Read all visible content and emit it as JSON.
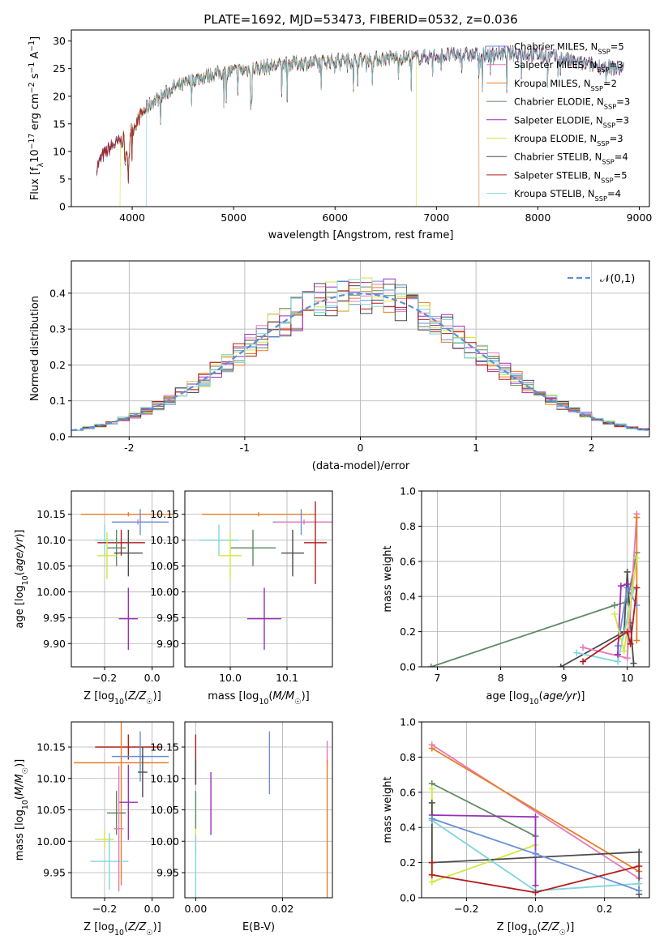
{
  "title": "PLATE=1692, MJD=53473, FIBERID=0532, z=0.036",
  "colors": {
    "Chabrier MILES": "#6a8fd8",
    "Salpeter MILES": "#e879b8",
    "Kroupa MILES": "#e87d24",
    "Chabrier ELODIE": "#5e8a64",
    "Salpeter ELODIE": "#9a2fb8",
    "Kroupa ELODIE": "#d4e640",
    "Chabrier STELIB": "#4a4a4a",
    "Salpeter STELIB": "#b21e1e",
    "Kroupa STELIB": "#7fd6dc",
    "gaussian": "#5b8fd8",
    "grid": "#b0b0b0"
  },
  "chart_data": [
    {
      "id": "spectrum",
      "type": "line",
      "title": "PLATE=1692, MJD=53473, FIBERID=0532, z=0.036",
      "xlabel": "wavelength [Angstrom, rest frame]",
      "ylabel": "Flux [f_λ 10^-17 erg cm^-2 s^-1 A^-1]",
      "xlim": [
        3400,
        9100
      ],
      "ylim": [
        0,
        32
      ],
      "xticks": [
        4000,
        5000,
        6000,
        7000,
        8000,
        9000
      ],
      "yticks": [
        0,
        5,
        10,
        15,
        20,
        25,
        30
      ],
      "grid": false,
      "legend_position": "top-right",
      "continuum": [
        [
          3650,
          7
        ],
        [
          3700,
          9
        ],
        [
          3800,
          11
        ],
        [
          3900,
          12
        ],
        [
          4000,
          14
        ],
        [
          4100,
          17
        ],
        [
          4200,
          19
        ],
        [
          4300,
          20
        ],
        [
          4400,
          21.5
        ],
        [
          4500,
          22
        ],
        [
          4600,
          23
        ],
        [
          4800,
          24
        ],
        [
          5000,
          24.5
        ],
        [
          5200,
          25
        ],
        [
          5400,
          25.5
        ],
        [
          5600,
          26
        ],
        [
          5800,
          26
        ],
        [
          6000,
          26.5
        ],
        [
          6200,
          26.5
        ],
        [
          6400,
          26.7
        ],
        [
          6600,
          27
        ],
        [
          6800,
          27
        ],
        [
          7000,
          27.3
        ],
        [
          7200,
          27.5
        ],
        [
          7400,
          27.5
        ],
        [
          7600,
          27.7
        ],
        [
          7800,
          27.8
        ],
        [
          8000,
          27.5
        ],
        [
          8200,
          27
        ],
        [
          8400,
          26
        ],
        [
          8600,
          25.5
        ],
        [
          8800,
          25
        ]
      ],
      "series": [
        {
          "name": "Chabrier MILES",
          "n_ssp": "5"
        },
        {
          "name": "Salpeter MILES",
          "n_ssp": "3"
        },
        {
          "name": "Kroupa MILES",
          "n_ssp": "2",
          "end": 7420
        },
        {
          "name": "Chabrier ELODIE",
          "n_ssp": "3"
        },
        {
          "name": "Salpeter ELODIE",
          "n_ssp": "3"
        },
        {
          "name": "Kroupa ELODIE",
          "n_ssp": "3",
          "start": 3880,
          "end": 6800
        },
        {
          "name": "Chabrier STELIB",
          "n_ssp": "4"
        },
        {
          "name": "Salpeter STELIB",
          "n_ssp": "5"
        },
        {
          "name": "Kroupa STELIB",
          "n_ssp": "4",
          "start": 4140
        }
      ]
    },
    {
      "id": "residual_histogram",
      "type": "bar",
      "xlabel": "(data-model)/error",
      "ylabel": "Normed distribution",
      "xlim": [
        -2.5,
        2.5
      ],
      "ylim": [
        0,
        0.49
      ],
      "xticks": [
        -2,
        -1,
        0,
        1,
        2
      ],
      "yticks": [
        0.0,
        0.1,
        0.2,
        0.3,
        0.4
      ],
      "grid": true,
      "bin_width": 0.1,
      "legend_label": "𝒩(0,1)",
      "legend_position": "top-right"
    },
    {
      "id": "age_vs_Z",
      "type": "scatter",
      "xlabel": "Z [log10(Z/Z☉)]",
      "ylabel": "age  [log10(age/yr)]",
      "xlim": [
        -0.34,
        0.09
      ],
      "ylim": [
        9.855,
        10.195
      ],
      "xticks": [
        -0.2,
        0.0
      ],
      "xticklabels": [
        "−0.2",
        "0.0"
      ],
      "yticks": [
        9.9,
        9.95,
        10.0,
        10.05,
        10.1,
        10.15
      ],
      "grid": true,
      "points": [
        {
          "series": "Kroupa MILES",
          "x": -0.1,
          "dx": 0.2,
          "y": 10.15,
          "dy": 0.004
        },
        {
          "series": "Salpeter MILES",
          "x": -0.06,
          "dx": 0.1,
          "y": 10.135,
          "dy": 0.005
        },
        {
          "series": "Chabrier MILES",
          "x": -0.05,
          "dx": 0.12,
          "y": 10.135,
          "dy": 0.025
        },
        {
          "series": "Kroupa STELIB",
          "x": -0.2,
          "dx": 0.04,
          "y": 10.1,
          "dy": 0.03
        },
        {
          "series": "Salpeter STELIB",
          "x": -0.13,
          "dx": 0.1,
          "y": 10.095,
          "dy": 0.025
        },
        {
          "series": "Chabrier ELODIE",
          "x": -0.15,
          "dx": 0.04,
          "y": 10.085,
          "dy": 0.035
        },
        {
          "series": "Chabrier STELIB",
          "x": -0.1,
          "dx": 0.06,
          "y": 10.075,
          "dy": 0.045
        },
        {
          "series": "Kroupa ELODIE",
          "x": -0.19,
          "dx": 0.04,
          "y": 10.07,
          "dy": 0.045
        },
        {
          "series": "Salpeter ELODIE",
          "x": -0.1,
          "dx": 0.04,
          "y": 9.948,
          "dy": 0.06
        }
      ]
    },
    {
      "id": "age_vs_mass",
      "type": "scatter",
      "xlabel": "mass [log10(M/M☉)]",
      "ylabel": "",
      "xlim": [
        9.92,
        10.18
      ],
      "ylim": [
        9.855,
        10.195
      ],
      "xticks": [
        10.0,
        10.1
      ],
      "yticks": [
        9.9,
        9.95,
        10.0,
        10.05,
        10.1,
        10.15
      ],
      "grid": true,
      "points": [
        {
          "series": "Kroupa MILES",
          "x": 10.05,
          "dx": 0.1,
          "y": 10.15,
          "dy": 0.004
        },
        {
          "series": "Chabrier MILES",
          "x": 10.125,
          "dx": 0.05,
          "y": 10.135,
          "dy": 0.025
        },
        {
          "series": "Salpeter MILES",
          "x": 10.13,
          "dx": 0.05,
          "y": 10.135,
          "dy": 0.005
        },
        {
          "series": "Kroupa STELIB",
          "x": 9.98,
          "dx": 0.035,
          "y": 10.1,
          "dy": 0.03
        },
        {
          "series": "Salpeter STELIB",
          "x": 10.15,
          "dx": 0.02,
          "y": 10.095,
          "dy": 0.08
        },
        {
          "series": "Chabrier ELODIE",
          "x": 10.04,
          "dx": 0.04,
          "y": 10.085,
          "dy": 0.035
        },
        {
          "series": "Chabrier STELIB",
          "x": 10.11,
          "dx": 0.02,
          "y": 10.075,
          "dy": 0.045
        },
        {
          "series": "Kroupa ELODIE",
          "x": 10.0,
          "dx": 0.02,
          "y": 10.07,
          "dy": 0.045
        },
        {
          "series": "Salpeter ELODIE",
          "x": 10.06,
          "dx": 0.03,
          "y": 9.948,
          "dy": 0.06
        }
      ]
    },
    {
      "id": "mass_weight_vs_age",
      "type": "line",
      "xlabel": "age  [log10(age/yr)]",
      "ylabel": "mass weight",
      "xlim": [
        6.75,
        10.35
      ],
      "ylim": [
        0,
        1.0
      ],
      "xticks": [
        7,
        8,
        9,
        10
      ],
      "yticks": [
        0.0,
        0.2,
        0.4,
        0.6,
        0.8,
        1.0
      ],
      "grid": true,
      "series": [
        {
          "name": "Chabrier ELODIE",
          "points": [
            [
              6.9,
              0
            ],
            [
              9.8,
              0.35
            ],
            [
              10.0,
              0.37
            ],
            [
              10.15,
              0.65
            ]
          ]
        },
        {
          "name": "Chabrier STELIB",
          "points": [
            [
              8.95,
              0
            ],
            [
              9.95,
              0.2
            ],
            [
              10.0,
              0.54
            ],
            [
              10.05,
              0.25
            ],
            [
              10.1,
              0.02
            ]
          ]
        },
        {
          "name": "Kroupa STELIB",
          "points": [
            [
              9.2,
              0.08
            ],
            [
              9.85,
              0.03
            ],
            [
              10.1,
              0.44
            ],
            [
              10.15,
              0.45
            ]
          ]
        },
        {
          "name": "Salpeter MILES",
          "points": [
            [
              9.3,
              0.11
            ],
            [
              10.0,
              0.05
            ],
            [
              10.15,
              0.87
            ]
          ]
        },
        {
          "name": "Kroupa MILES",
          "points": [
            [
              10.15,
              0.15
            ],
            [
              10.15,
              0.85
            ]
          ]
        },
        {
          "name": "Chabrier MILES",
          "points": [
            [
              9.85,
              0.12
            ],
            [
              10.0,
              0.45
            ],
            [
              10.15,
              0.35
            ]
          ]
        },
        {
          "name": "Salpeter ELODIE",
          "points": [
            [
              9.85,
              0.07
            ],
            [
              9.9,
              0.46
            ],
            [
              10.0,
              0.47
            ]
          ]
        },
        {
          "name": "Kroupa ELODIE",
          "points": [
            [
              9.8,
              0.3
            ],
            [
              9.95,
              0.09
            ],
            [
              10.15,
              0.62
            ]
          ]
        },
        {
          "name": "Salpeter STELIB",
          "points": [
            [
              9.3,
              0.03
            ],
            [
              10.0,
              0.2
            ],
            [
              10.05,
              0.13
            ],
            [
              10.15,
              0.45
            ]
          ]
        }
      ]
    },
    {
      "id": "mass_vs_Z",
      "type": "scatter",
      "xlabel": "Z [log10(Z/Z☉)]",
      "ylabel": "mass [log10(M/M☉)]",
      "xlim": [
        -0.34,
        0.09
      ],
      "ylim": [
        9.91,
        10.19
      ],
      "xticks": [
        -0.2,
        0.0
      ],
      "xticklabels": [
        "−0.2",
        "0.0"
      ],
      "yticks": [
        9.95,
        10.0,
        10.05,
        10.1,
        10.15
      ],
      "grid": true,
      "points": [
        {
          "series": "Salpeter STELIB",
          "x": -0.1,
          "dx": 0.14,
          "y": 10.15,
          "dy": 0.02
        },
        {
          "series": "Chabrier MILES",
          "x": -0.05,
          "dx": 0.12,
          "y": 10.135,
          "dy": 0.04
        },
        {
          "series": "Kroupa MILES",
          "x": -0.13,
          "dx": 0.2,
          "y": 10.125,
          "dy": 0.195
        },
        {
          "series": "Chabrier STELIB",
          "x": -0.04,
          "dx": 0.02,
          "y": 10.11,
          "dy": 0.04
        },
        {
          "series": "Salpeter ELODIE",
          "x": -0.1,
          "dx": 0.04,
          "y": 10.062,
          "dy": 0.06
        },
        {
          "series": "Chabrier ELODIE",
          "x": -0.15,
          "dx": 0.04,
          "y": 10.045,
          "dy": 0.035
        },
        {
          "series": "Kroupa ELODIE",
          "x": -0.2,
          "dx": 0.04,
          "y": 10.003,
          "dy": 0.015
        },
        {
          "series": "Kroupa STELIB",
          "x": -0.18,
          "dx": 0.08,
          "y": 9.968,
          "dy": 0.045
        },
        {
          "series": "Salpeter MILES",
          "x": -0.14,
          "dx": 0.02,
          "y": 10.02,
          "dy": 0.1
        }
      ]
    },
    {
      "id": "mass_vs_ebv",
      "type": "scatter",
      "xlabel": "E(B-V)",
      "ylabel": "",
      "xlim": [
        -0.0025,
        0.0315
      ],
      "ylim": [
        9.91,
        10.19
      ],
      "xticks": [
        0.0,
        0.02
      ],
      "yticks": [
        9.95,
        10.0,
        10.05,
        10.1,
        10.15
      ],
      "grid": true,
      "points": [
        {
          "series": "Salpeter STELIB",
          "x": 0.0,
          "dx": 0,
          "y": 10.13,
          "dy": 0.04
        },
        {
          "series": "Chabrier STELIB",
          "x": 0.0,
          "dx": 0,
          "y": 10.11,
          "dy": 0.02
        },
        {
          "series": "Chabrier ELODIE",
          "x": 0.0,
          "dx": 0,
          "y": 10.05,
          "dy": 0.03
        },
        {
          "series": "Kroupa ELODIE",
          "x": 0.0,
          "dx": 0,
          "y": 10.0,
          "dy": 0.02
        },
        {
          "series": "Kroupa STELIB",
          "x": 0.0,
          "dx": 0,
          "y": 9.96,
          "dy": 0.05
        },
        {
          "series": "Salpeter ELODIE",
          "x": 0.0035,
          "dx": 0,
          "y": 10.06,
          "dy": 0.05
        },
        {
          "series": "Chabrier MILES",
          "x": 0.017,
          "dx": 0,
          "y": 10.125,
          "dy": 0.05
        },
        {
          "series": "Salpeter MILES",
          "x": 0.0303,
          "dx": 0,
          "y": 10.14,
          "dy": 0.02
        },
        {
          "series": "Kroupa MILES",
          "x": 0.0303,
          "dx": 0,
          "y": 10.02,
          "dy": 0.11
        }
      ]
    },
    {
      "id": "mass_weight_vs_Z",
      "type": "line",
      "xlabel": "Z [log10(Z/Z☉)]",
      "ylabel": "mass weight",
      "xlim": [
        -0.33,
        0.33
      ],
      "ylim": [
        0,
        1.0
      ],
      "xticks": [
        -0.2,
        0.0,
        0.2
      ],
      "xticklabels": [
        "−0.2",
        "0.0",
        "0.2"
      ],
      "yticks": [
        0.0,
        0.2,
        0.4,
        0.6,
        0.8,
        1.0
      ],
      "grid": true,
      "series": [
        {
          "name": "Salpeter MILES",
          "points": [
            [
              -0.3,
              0.87
            ],
            [
              0.3,
              0.11
            ]
          ]
        },
        {
          "name": "Kroupa MILES",
          "points": [
            [
              -0.3,
              0.85
            ],
            [
              0.3,
              0.15
            ]
          ]
        },
        {
          "name": "Chabrier ELODIE",
          "points": [
            [
              -0.3,
              0.65
            ],
            [
              0.0,
              0.35
            ]
          ]
        },
        {
          "name": "Kroupa ELODIE",
          "points": [
            [
              -0.3,
              0.62
            ],
            [
              -0.3,
              0.09
            ],
            [
              0.0,
              0.3
            ]
          ]
        },
        {
          "name": "Salpeter ELODIE",
          "points": [
            [
              -0.3,
              0.47
            ],
            [
              0.0,
              0.46
            ],
            [
              0.0,
              0.07
            ]
          ]
        },
        {
          "name": "Chabrier STELIB",
          "points": [
            [
              -0.3,
              0.54
            ],
            [
              -0.3,
              0.2
            ],
            [
              0.3,
              0.26
            ],
            [
              0.3,
              0.02
            ]
          ]
        },
        {
          "name": "Kroupa STELIB",
          "points": [
            [
              -0.3,
              0.44
            ],
            [
              0.0,
              0.04
            ],
            [
              0.3,
              0.08
            ]
          ]
        },
        {
          "name": "Chabrier MILES",
          "points": [
            [
              -0.3,
              0.45
            ],
            [
              0.0,
              0.25
            ],
            [
              0.3,
              0.04
            ]
          ]
        },
        {
          "name": "Salpeter STELIB",
          "points": [
            [
              -0.3,
              0.2
            ],
            [
              -0.3,
              0.13
            ],
            [
              0.0,
              0.03
            ],
            [
              0.3,
              0.18
            ]
          ]
        }
      ]
    }
  ]
}
